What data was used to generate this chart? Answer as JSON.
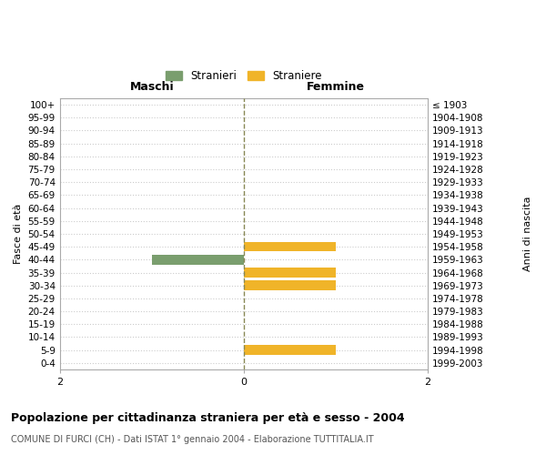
{
  "age_groups": [
    "100+",
    "95-99",
    "90-94",
    "85-89",
    "80-84",
    "75-79",
    "70-74",
    "65-69",
    "60-64",
    "55-59",
    "50-54",
    "45-49",
    "40-44",
    "35-39",
    "30-34",
    "25-29",
    "20-24",
    "15-19",
    "10-14",
    "5-9",
    "0-4"
  ],
  "birth_years": [
    "≤ 1903",
    "1904-1908",
    "1909-1913",
    "1914-1918",
    "1919-1923",
    "1924-1928",
    "1929-1933",
    "1934-1938",
    "1939-1943",
    "1944-1948",
    "1949-1953",
    "1954-1958",
    "1959-1963",
    "1964-1968",
    "1969-1973",
    "1974-1978",
    "1979-1983",
    "1984-1988",
    "1989-1993",
    "1994-1998",
    "1999-2003"
  ],
  "stranieri_maschi": [
    0,
    0,
    0,
    0,
    0,
    0,
    0,
    0,
    0,
    0,
    0,
    0,
    1,
    0,
    0,
    0,
    0,
    0,
    0,
    0,
    0
  ],
  "straniere_femmine": [
    0,
    0,
    0,
    0,
    0,
    0,
    0,
    0,
    0,
    0,
    0,
    1,
    0,
    1,
    1,
    0,
    0,
    0,
    0,
    1,
    0
  ],
  "male_color": "#7a9e6e",
  "female_color": "#f0b429",
  "xlim": 2,
  "background_color": "#ffffff",
  "grid_color": "#cccccc",
  "title": "Popolazione per cittadinanza straniera per età e sesso - 2004",
  "subtitle": "COMUNE DI FURCI (CH) - Dati ISTAT 1° gennaio 2004 - Elaborazione TUTTITALIA.IT",
  "ylabel_left": "Fasce di età",
  "ylabel_right": "Anni di nascita",
  "header_left": "Maschi",
  "header_right": "Femmine",
  "legend_male": "Stranieri",
  "legend_female": "Straniere",
  "bar_height": 0.75
}
